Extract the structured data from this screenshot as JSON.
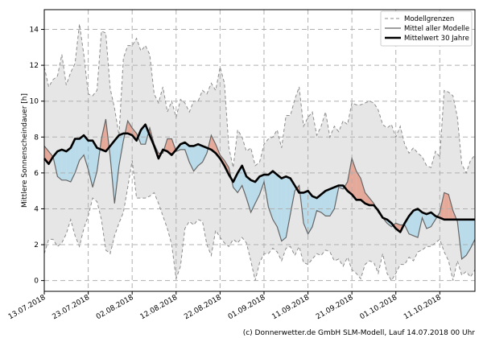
{
  "chart_data": {
    "type": "line",
    "title": "",
    "ylabel": "Mittlere Sonnenscheindauer [h]",
    "xlabel": "",
    "ylim": [
      -0.6,
      15.1
    ],
    "yticks": [
      0,
      2,
      4,
      6,
      8,
      10,
      12,
      14
    ],
    "xticks": [
      {
        "day": 0,
        "label": "13.07.2018"
      },
      {
        "day": 10,
        "label": "23.07.2018"
      },
      {
        "day": 20,
        "label": "02.08.2018"
      },
      {
        "day": 30,
        "label": "12.08.2018"
      },
      {
        "day": 40,
        "label": "22.08.2018"
      },
      {
        "day": 50,
        "label": "01.09.2018"
      },
      {
        "day": 60,
        "label": "11.09.2018"
      },
      {
        "day": 70,
        "label": "21.09.2018"
      },
      {
        "day": 80,
        "label": "01.10.2018"
      },
      {
        "day": 90,
        "label": "11.10.2018"
      }
    ],
    "xlim": [
      0,
      98
    ],
    "grid": true,
    "legend_position": "top-right",
    "legend": [
      {
        "label": "Modellgrenzen",
        "style": "dashed-gray"
      },
      {
        "label": "Mittel aller Modelle",
        "style": "thin-gray"
      },
      {
        "label": "Mittelwert 30 Jahre",
        "style": "thick-black"
      }
    ],
    "series": [
      {
        "name": "Modellgrenzen (max)",
        "x": [
          0,
          1,
          2,
          3,
          4,
          5,
          6,
          7,
          8,
          9,
          10,
          11,
          12,
          13,
          14,
          15,
          16,
          17,
          18,
          19,
          20,
          21,
          22,
          23,
          24,
          25,
          26,
          27,
          28,
          29,
          30,
          31,
          32,
          33,
          34,
          35,
          36,
          37,
          38,
          39,
          40,
          41,
          42,
          43,
          44,
          45,
          46,
          47,
          48,
          49,
          50,
          51,
          52,
          53,
          54,
          55,
          56,
          57,
          58,
          59,
          60,
          61,
          62,
          63,
          64,
          65,
          66,
          67,
          68,
          69,
          70,
          71,
          72,
          73,
          74,
          75,
          76,
          77,
          78,
          79,
          80,
          81,
          82,
          83,
          84,
          85,
          86,
          87,
          88,
          89,
          90,
          91,
          92,
          93,
          94,
          95,
          96,
          97,
          98
        ],
        "values": [
          11.9,
          10.8,
          11.2,
          11.4,
          12.6,
          10.9,
          11.6,
          12.1,
          14.3,
          12.6,
          10.4,
          10.3,
          10.6,
          13.9,
          13.8,
          10.7,
          9.6,
          8.1,
          12.4,
          13.1,
          13.1,
          13.5,
          12.8,
          13.1,
          12.6,
          10.4,
          9.9,
          10.8,
          9.4,
          10.0,
          9.1,
          10.1,
          9.9,
          9.4,
          10.0,
          10.0,
          10.6,
          10.4,
          11.0,
          10.6,
          11.9,
          11.0,
          7.4,
          6.3,
          8.4,
          8.0,
          7.2,
          7.4,
          6.4,
          6.6,
          7.6,
          7.9,
          8.0,
          8.4,
          7.4,
          9.2,
          9.2,
          10.1,
          10.8,
          8.6,
          9.1,
          9.4,
          8.1,
          8.6,
          9.4,
          8.0,
          8.6,
          8.3,
          8.9,
          8.7,
          9.9,
          9.8,
          9.8,
          9.9,
          10.0,
          9.9,
          9.5,
          8.7,
          8.5,
          8.7,
          8.0,
          8.6,
          7.6,
          7.1,
          7.4,
          7.1,
          6.9,
          6.4,
          6.3,
          7.2,
          6.9,
          10.6,
          10.5,
          10.3,
          9.1,
          6.5,
          6.0,
          6.7,
          7.0
        ]
      },
      {
        "name": "Modellgrenzen (min)",
        "x": [
          0,
          1,
          2,
          3,
          4,
          5,
          6,
          7,
          8,
          9,
          10,
          11,
          12,
          13,
          14,
          15,
          16,
          17,
          18,
          19,
          20,
          21,
          22,
          23,
          24,
          25,
          26,
          27,
          28,
          29,
          30,
          31,
          32,
          33,
          34,
          35,
          36,
          37,
          38,
          39,
          40,
          41,
          42,
          43,
          44,
          45,
          46,
          47,
          48,
          49,
          50,
          51,
          52,
          53,
          54,
          55,
          56,
          57,
          58,
          59,
          60,
          61,
          62,
          63,
          64,
          65,
          66,
          67,
          68,
          69,
          70,
          71,
          72,
          73,
          74,
          75,
          76,
          77,
          78,
          79,
          80,
          81,
          82,
          83,
          84,
          85,
          86,
          87,
          88,
          89,
          90,
          91,
          92,
          93,
          94,
          95,
          96,
          97,
          98
        ],
        "values": [
          1.5,
          2.3,
          2.3,
          1.9,
          2.1,
          2.6,
          3.4,
          2.5,
          1.9,
          2.9,
          3.6,
          4.6,
          4.4,
          3.4,
          1.7,
          1.5,
          2.5,
          3.2,
          3.8,
          5.2,
          6.7,
          4.6,
          4.6,
          4.6,
          4.7,
          4.9,
          4.3,
          3.6,
          2.9,
          2.0,
          0.1,
          0.8,
          2.9,
          3.3,
          3.1,
          3.4,
          3.3,
          2.0,
          1.4,
          2.8,
          2.4,
          2.1,
          1.9,
          2.3,
          2.1,
          2.4,
          2.1,
          1.1,
          0.0,
          1.0,
          1.5,
          1.5,
          1.8,
          1.6,
          1.1,
          1.8,
          1.9,
          1.4,
          1.9,
          1.0,
          0.9,
          1.2,
          1.5,
          1.4,
          1.7,
          1.6,
          1.1,
          1.2,
          0.8,
          1.3,
          0.6,
          0.4,
          0.1,
          0.9,
          1.1,
          1.0,
          0.4,
          1.5,
          0.4,
          0.0,
          0.4,
          0.9,
          0.9,
          1.3,
          1.1,
          1.6,
          1.7,
          1.9,
          1.9,
          2.1,
          2.3,
          1.6,
          1.1,
          0.0,
          1.1,
          0.3,
          0.5,
          0.2,
          0.6
        ]
      },
      {
        "name": "Mittel aller Modelle",
        "x": [
          0,
          1,
          2,
          3,
          4,
          5,
          6,
          7,
          8,
          9,
          10,
          11,
          12,
          13,
          14,
          15,
          16,
          17,
          18,
          19,
          20,
          21,
          22,
          23,
          24,
          25,
          26,
          27,
          28,
          29,
          30,
          31,
          32,
          33,
          34,
          35,
          36,
          37,
          38,
          39,
          40,
          41,
          42,
          43,
          44,
          45,
          46,
          47,
          48,
          49,
          50,
          51,
          52,
          53,
          54,
          55,
          56,
          57,
          58,
          59,
          60,
          61,
          62,
          63,
          64,
          65,
          66,
          67,
          68,
          69,
          70,
          71,
          72,
          73,
          74,
          75,
          76,
          77,
          78,
          79,
          80,
          81,
          82,
          83,
          84,
          85,
          86,
          87,
          88,
          89,
          90,
          91,
          92,
          93,
          94,
          95,
          96,
          97,
          98
        ],
        "values": [
          7.5,
          7.2,
          6.9,
          5.8,
          5.6,
          5.6,
          5.5,
          6.0,
          6.7,
          7.0,
          6.2,
          5.2,
          6.1,
          7.9,
          9.0,
          6.9,
          4.3,
          6.4,
          7.8,
          8.9,
          8.5,
          8.2,
          7.6,
          7.6,
          8.5,
          7.6,
          7.1,
          7.1,
          7.9,
          7.9,
          7.2,
          7.3,
          7.3,
          6.6,
          6.1,
          6.4,
          6.6,
          7.1,
          8.1,
          7.6,
          7.0,
          6.7,
          6.3,
          5.2,
          4.9,
          5.3,
          4.6,
          3.8,
          4.3,
          4.8,
          5.5,
          4.1,
          3.4,
          3.0,
          2.2,
          2.4,
          3.7,
          5.0,
          5.3,
          3.2,
          2.6,
          3.0,
          3.9,
          3.8,
          3.6,
          3.6,
          4.0,
          5.2,
          5.1,
          5.5,
          6.8,
          6.1,
          5.7,
          4.9,
          4.6,
          4.3,
          3.8,
          3.5,
          3.2,
          3.0,
          3.2,
          3.1,
          3.1,
          2.6,
          2.5,
          2.4,
          3.5,
          2.9,
          3.0,
          3.4,
          3.8,
          4.9,
          4.8,
          3.9,
          3.3,
          1.2,
          1.4,
          1.8,
          2.3
        ]
      },
      {
        "name": "Mittelwert 30 Jahre",
        "x": [
          0,
          1,
          2,
          3,
          4,
          5,
          6,
          7,
          8,
          9,
          10,
          11,
          12,
          13,
          14,
          15,
          16,
          17,
          18,
          19,
          20,
          21,
          22,
          23,
          24,
          25,
          26,
          27,
          28,
          29,
          30,
          31,
          32,
          33,
          34,
          35,
          36,
          37,
          38,
          39,
          40,
          41,
          42,
          43,
          44,
          45,
          46,
          47,
          48,
          49,
          50,
          51,
          52,
          53,
          54,
          55,
          56,
          57,
          58,
          59,
          60,
          61,
          62,
          63,
          64,
          65,
          66,
          67,
          68,
          69,
          70,
          71,
          72,
          73,
          74,
          75,
          76,
          77,
          78,
          79,
          80,
          81,
          82,
          83,
          84,
          85,
          86,
          87,
          88,
          89,
          90,
          91,
          92,
          93,
          94,
          95,
          96,
          97,
          98
        ],
        "values": [
          6.8,
          6.5,
          6.9,
          7.2,
          7.3,
          7.2,
          7.4,
          7.9,
          7.9,
          8.1,
          7.8,
          7.8,
          7.4,
          7.3,
          7.2,
          7.5,
          7.8,
          8.1,
          8.2,
          8.2,
          8.1,
          7.8,
          8.4,
          8.7,
          8.1,
          7.5,
          6.8,
          7.3,
          7.2,
          7.0,
          7.3,
          7.6,
          7.7,
          7.5,
          7.5,
          7.6,
          7.5,
          7.4,
          7.3,
          7.1,
          6.8,
          6.4,
          5.9,
          5.5,
          6.0,
          6.4,
          5.8,
          5.6,
          5.5,
          5.8,
          5.9,
          5.9,
          6.1,
          5.9,
          5.7,
          5.8,
          5.7,
          5.3,
          4.9,
          4.9,
          5.0,
          4.7,
          4.6,
          4.8,
          5.0,
          5.1,
          5.2,
          5.3,
          5.3,
          5.0,
          4.8,
          4.5,
          4.5,
          4.3,
          4.2,
          4.2,
          3.9,
          3.5,
          3.4,
          3.2,
          2.9,
          2.7,
          3.2,
          3.6,
          3.9,
          4.0,
          3.8,
          3.7,
          3.8,
          3.6,
          3.5,
          3.4,
          3.4,
          3.4,
          3.4,
          3.4,
          3.4,
          3.4,
          3.4
        ]
      }
    ]
  },
  "footer": {
    "credit": "(c) Donnerwetter.de GmbH SLM-Modell, Lauf 14.07.2018 00 Uhr"
  },
  "colors": {
    "envelope_fill": "#e6e6e6",
    "envelope_line": "#8c8c8c",
    "above_fill": "#e5a99a",
    "below_fill": "#b9dbea",
    "mean_line": "#666666",
    "clim_line": "#000000",
    "grid": "#b0b0b0"
  }
}
